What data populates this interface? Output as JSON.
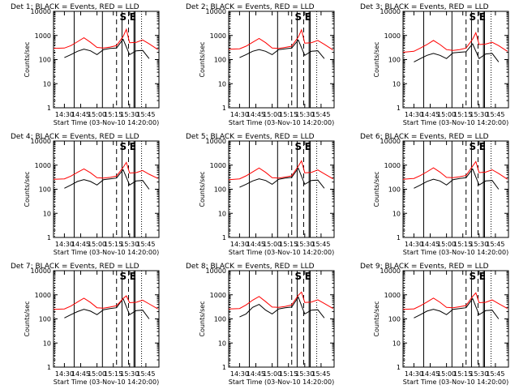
{
  "chart_data": [
    {
      "type": "line",
      "title": "Det 1: BLACK = Events, RED = LLD",
      "xlabel": "Start Time (03-Nov-10 14:20:00)",
      "ylabel": "Counts/sec",
      "yscale": "log",
      "ylim": [
        1,
        10000
      ],
      "x_ticks": [
        "14:30",
        "14:45",
        "15:00",
        "15:15",
        "15:30",
        "15:45"
      ],
      "y_ticks": [
        "1",
        "10",
        "100",
        "1000",
        "10000"
      ],
      "markers": [
        "S",
        "E"
      ],
      "series": [
        {
          "name": "Events",
          "color": "#000000",
          "x": [
            "14:30",
            "14:36",
            "14:42",
            "14:48",
            "14:54",
            "15:00",
            "15:06",
            "15:12",
            "15:18",
            "15:24",
            "15:30",
            "15:36",
            "15:42",
            "15:48"
          ],
          "y": [
            120,
            160,
            220,
            270,
            230,
            160,
            260,
            290,
            300,
            700,
            160,
            230,
            240,
            110
          ]
        },
        {
          "name": "LLD",
          "color": "#ff0000",
          "x": [
            "14:20",
            "14:30",
            "14:36",
            "14:42",
            "14:48",
            "14:54",
            "15:00",
            "15:06",
            "15:12",
            "15:18",
            "15:24",
            "15:27",
            "15:30",
            "15:36",
            "15:42",
            "15:48",
            "15:56"
          ],
          "y": [
            290,
            300,
            380,
            550,
            800,
            520,
            320,
            300,
            330,
            380,
            900,
            1800,
            500,
            520,
            650,
            450,
            260
          ]
        }
      ]
    },
    {
      "type": "line",
      "title": "Det 2: BLACK = Events, RED = LLD",
      "xlabel": "Start Time (03-Nov-10 14:20:00)",
      "ylabel": "Counts/sec",
      "yscale": "log",
      "ylim": [
        1,
        10000
      ],
      "x_ticks": [
        "14:30",
        "14:45",
        "15:00",
        "15:15",
        "15:30",
        "15:45"
      ],
      "y_ticks": [
        "1",
        "10",
        "100",
        "1000",
        "10000"
      ],
      "markers": [
        "S",
        "E"
      ],
      "series": [
        {
          "name": "Events",
          "color": "#000000",
          "x": [
            "14:30",
            "14:36",
            "14:42",
            "14:48",
            "14:54",
            "15:00",
            "15:06",
            "15:12",
            "15:18",
            "15:24",
            "15:30",
            "15:36",
            "15:42",
            "15:48"
          ],
          "y": [
            120,
            160,
            220,
            260,
            220,
            160,
            260,
            280,
            300,
            650,
            150,
            220,
            230,
            110
          ]
        },
        {
          "name": "LLD",
          "color": "#ff0000",
          "x": [
            "14:20",
            "14:30",
            "14:36",
            "14:42",
            "14:48",
            "14:54",
            "15:00",
            "15:06",
            "15:12",
            "15:18",
            "15:24",
            "15:27",
            "15:30",
            "15:36",
            "15:42",
            "15:48",
            "15:56"
          ],
          "y": [
            270,
            280,
            360,
            520,
            750,
            500,
            300,
            290,
            320,
            360,
            850,
            1700,
            480,
            500,
            620,
            430,
            250
          ]
        }
      ]
    },
    {
      "type": "line",
      "title": "Det 3: BLACK = Events, RED = LLD",
      "xlabel": "Start Time (03-Nov-10 14:20:00)",
      "ylabel": "Counts/sec",
      "yscale": "log",
      "ylim": [
        1,
        10000
      ],
      "x_ticks": [
        "14:30",
        "14:45",
        "15:00",
        "15:15",
        "15:30",
        "15:45"
      ],
      "y_ticks": [
        "1",
        "10",
        "100",
        "1000",
        "10000"
      ],
      "markers": [
        "S",
        "E"
      ],
      "series": [
        {
          "name": "Events",
          "color": "#000000",
          "x": [
            "14:30",
            "14:36",
            "14:42",
            "14:48",
            "14:54",
            "15:00",
            "15:06",
            "15:12",
            "15:18",
            "15:24",
            "15:30",
            "15:36",
            "15:42",
            "15:48"
          ],
          "y": [
            80,
            110,
            150,
            180,
            150,
            110,
            190,
            200,
            210,
            450,
            110,
            170,
            180,
            80
          ]
        },
        {
          "name": "LLD",
          "color": "#ff0000",
          "x": [
            "14:20",
            "14:30",
            "14:36",
            "14:42",
            "14:48",
            "14:54",
            "15:00",
            "15:06",
            "15:12",
            "15:18",
            "15:24",
            "15:27",
            "15:30",
            "15:36",
            "15:42",
            "15:48",
            "15:56"
          ],
          "y": [
            200,
            220,
            300,
            420,
            620,
            420,
            260,
            240,
            260,
            300,
            700,
            1300,
            420,
            440,
            520,
            380,
            220
          ]
        }
      ]
    },
    {
      "type": "line",
      "title": "Det 4: BLACK = Events, RED = LLD",
      "xlabel": "Start Time (03-Nov-10 14:20:00)",
      "ylabel": "Counts/sec",
      "yscale": "log",
      "ylim": [
        1,
        10000
      ],
      "x_ticks": [
        "14:30",
        "14:45",
        "15:00",
        "15:15",
        "15:30",
        "15:45"
      ],
      "y_ticks": [
        "1",
        "10",
        "100",
        "1000",
        "10000"
      ],
      "markers": [
        "S",
        "E"
      ],
      "series": [
        {
          "name": "Events",
          "color": "#000000",
          "x": [
            "14:30",
            "14:36",
            "14:42",
            "14:48",
            "14:54",
            "15:00",
            "15:06",
            "15:12",
            "15:18",
            "15:24",
            "15:30",
            "15:36",
            "15:42",
            "15:48"
          ],
          "y": [
            110,
            150,
            210,
            250,
            210,
            150,
            250,
            270,
            290,
            650,
            150,
            220,
            230,
            100
          ]
        },
        {
          "name": "LLD",
          "color": "#ff0000",
          "x": [
            "14:20",
            "14:30",
            "14:36",
            "14:42",
            "14:48",
            "14:54",
            "15:00",
            "15:06",
            "15:12",
            "15:18",
            "15:24",
            "15:27",
            "15:30",
            "15:36",
            "15:42",
            "15:48",
            "15:56"
          ],
          "y": [
            260,
            270,
            350,
            500,
            700,
            480,
            300,
            290,
            310,
            350,
            800,
            1300,
            470,
            490,
            600,
            420,
            280
          ]
        }
      ]
    },
    {
      "type": "line",
      "title": "Det 5: BLACK = Events, RED = LLD",
      "xlabel": "Start Time (03-Nov-10 14:20:00)",
      "ylabel": "Counts/sec",
      "yscale": "log",
      "ylim": [
        1,
        10000
      ],
      "x_ticks": [
        "14:30",
        "14:45",
        "15:00",
        "15:15",
        "15:30",
        "15:45"
      ],
      "y_ticks": [
        "1",
        "10",
        "100",
        "1000",
        "10000"
      ],
      "markers": [
        "S",
        "E"
      ],
      "series": [
        {
          "name": "Events",
          "color": "#000000",
          "x": [
            "14:30",
            "14:36",
            "14:42",
            "14:48",
            "14:54",
            "15:00",
            "15:06",
            "15:12",
            "15:18",
            "15:24",
            "15:30",
            "15:36",
            "15:42",
            "15:48"
          ],
          "y": [
            120,
            160,
            220,
            270,
            230,
            160,
            260,
            290,
            310,
            750,
            160,
            230,
            240,
            110
          ]
        },
        {
          "name": "LLD",
          "color": "#ff0000",
          "x": [
            "14:20",
            "14:30",
            "14:36",
            "14:42",
            "14:48",
            "14:54",
            "15:00",
            "15:06",
            "15:12",
            "15:18",
            "15:24",
            "15:27",
            "15:30",
            "15:36",
            "15:42",
            "15:48",
            "15:56"
          ],
          "y": [
            250,
            270,
            360,
            520,
            760,
            500,
            300,
            290,
            320,
            360,
            900,
            1500,
            480,
            500,
            630,
            440,
            270
          ]
        }
      ]
    },
    {
      "type": "line",
      "title": "Det 6: BLACK = Events, RED = LLD",
      "xlabel": "Start Time (03-Nov-10 14:20:00)",
      "ylabel": "Counts/sec",
      "yscale": "log",
      "ylim": [
        1,
        10000
      ],
      "x_ticks": [
        "14:30",
        "14:45",
        "15:00",
        "15:15",
        "15:30",
        "15:45"
      ],
      "y_ticks": [
        "1",
        "10",
        "100",
        "1000",
        "10000"
      ],
      "markers": [
        "S",
        "E"
      ],
      "series": [
        {
          "name": "Events",
          "color": "#000000",
          "x": [
            "14:30",
            "14:36",
            "14:42",
            "14:48",
            "14:54",
            "15:00",
            "15:06",
            "15:12",
            "15:18",
            "15:24",
            "15:30",
            "15:36",
            "15:42",
            "15:48"
          ],
          "y": [
            110,
            150,
            210,
            260,
            220,
            150,
            250,
            280,
            300,
            700,
            150,
            220,
            230,
            100
          ]
        },
        {
          "name": "LLD",
          "color": "#ff0000",
          "x": [
            "14:20",
            "14:30",
            "14:36",
            "14:42",
            "14:48",
            "14:54",
            "15:00",
            "15:06",
            "15:12",
            "15:18",
            "15:24",
            "15:27",
            "15:30",
            "15:36",
            "15:42",
            "15:48",
            "15:56"
          ],
          "y": [
            260,
            280,
            370,
            530,
            770,
            510,
            310,
            300,
            330,
            370,
            900,
            1400,
            490,
            510,
            640,
            450,
            260
          ]
        }
      ]
    },
    {
      "type": "line",
      "title": "Det 7: BLACK = Events, RED = LLD",
      "xlabel": "Start Time (03-Nov-10 14:20:00)",
      "ylabel": "Counts/sec",
      "yscale": "log",
      "ylim": [
        1,
        10000
      ],
      "x_ticks": [
        "14:30",
        "14:45",
        "15:00",
        "15:15",
        "15:30",
        "15:45"
      ],
      "y_ticks": [
        "1",
        "10",
        "100",
        "1000",
        "10000"
      ],
      "markers": [
        "S",
        "E"
      ],
      "series": [
        {
          "name": "Events",
          "color": "#000000",
          "x": [
            "14:30",
            "14:36",
            "14:42",
            "14:48",
            "14:54",
            "15:00",
            "15:06",
            "15:12",
            "15:18",
            "15:24",
            "15:30",
            "15:36",
            "15:42",
            "15:48"
          ],
          "y": [
            110,
            150,
            200,
            250,
            210,
            150,
            240,
            270,
            290,
            700,
            150,
            220,
            230,
            100
          ]
        },
        {
          "name": "LLD",
          "color": "#ff0000",
          "x": [
            "14:20",
            "14:30",
            "14:36",
            "14:42",
            "14:48",
            "14:54",
            "15:00",
            "15:06",
            "15:12",
            "15:18",
            "15:24",
            "15:27",
            "15:30",
            "15:36",
            "15:42",
            "15:48",
            "15:56"
          ],
          "y": [
            250,
            260,
            340,
            500,
            720,
            480,
            290,
            280,
            310,
            350,
            700,
            900,
            470,
            490,
            600,
            420,
            260
          ]
        }
      ]
    },
    {
      "type": "line",
      "title": "Det 8: BLACK = Events, RED = LLD",
      "xlabel": "Start Time (03-Nov-10 14:20:00)",
      "ylabel": "Counts/sec",
      "yscale": "log",
      "ylim": [
        1,
        10000
      ],
      "x_ticks": [
        "14:30",
        "14:45",
        "15:00",
        "15:15",
        "15:30",
        "15:45"
      ],
      "y_ticks": [
        "1",
        "10",
        "100",
        "1000",
        "10000"
      ],
      "markers": [
        "S",
        "E"
      ],
      "series": [
        {
          "name": "Events",
          "color": "#000000",
          "x": [
            "14:30",
            "14:36",
            "14:42",
            "14:48",
            "14:54",
            "15:00",
            "15:06",
            "15:12",
            "15:18",
            "15:24",
            "15:30",
            "15:36",
            "15:42",
            "15:48"
          ],
          "y": [
            120,
            160,
            300,
            400,
            230,
            160,
            260,
            290,
            310,
            800,
            160,
            230,
            240,
            110
          ]
        },
        {
          "name": "LLD",
          "color": "#ff0000",
          "x": [
            "14:20",
            "14:30",
            "14:36",
            "14:42",
            "14:48",
            "14:54",
            "15:00",
            "15:06",
            "15:12",
            "15:18",
            "15:24",
            "15:27",
            "15:30",
            "15:36",
            "15:42",
            "15:48",
            "15:56"
          ],
          "y": [
            260,
            270,
            380,
            600,
            850,
            520,
            310,
            300,
            330,
            380,
            950,
            1300,
            480,
            500,
            620,
            440,
            270
          ]
        }
      ]
    },
    {
      "type": "line",
      "title": "Det 9: BLACK = Events, RED = LLD",
      "xlabel": "Start Time (03-Nov-10 14:20:00)",
      "ylabel": "Counts/sec",
      "yscale": "log",
      "ylim": [
        1,
        10000
      ],
      "x_ticks": [
        "14:30",
        "14:45",
        "15:00",
        "15:15",
        "15:30",
        "15:45"
      ],
      "y_ticks": [
        "1",
        "10",
        "100",
        "1000",
        "10000"
      ],
      "markers": [
        "S",
        "E"
      ],
      "series": [
        {
          "name": "Events",
          "color": "#000000",
          "x": [
            "14:30",
            "14:36",
            "14:42",
            "14:48",
            "14:54",
            "15:00",
            "15:06",
            "15:12",
            "15:18",
            "15:24",
            "15:30",
            "15:36",
            "15:42",
            "15:48"
          ],
          "y": [
            110,
            150,
            210,
            250,
            210,
            150,
            250,
            270,
            290,
            700,
            150,
            220,
            230,
            100
          ]
        },
        {
          "name": "LLD",
          "color": "#ff0000",
          "x": [
            "14:20",
            "14:30",
            "14:36",
            "14:42",
            "14:48",
            "14:54",
            "15:00",
            "15:06",
            "15:12",
            "15:18",
            "15:24",
            "15:27",
            "15:30",
            "15:36",
            "15:42",
            "15:48",
            "15:56"
          ],
          "y": [
            250,
            260,
            350,
            500,
            730,
            490,
            300,
            290,
            320,
            360,
            850,
            1200,
            470,
            490,
            610,
            430,
            270
          ]
        }
      ]
    }
  ]
}
